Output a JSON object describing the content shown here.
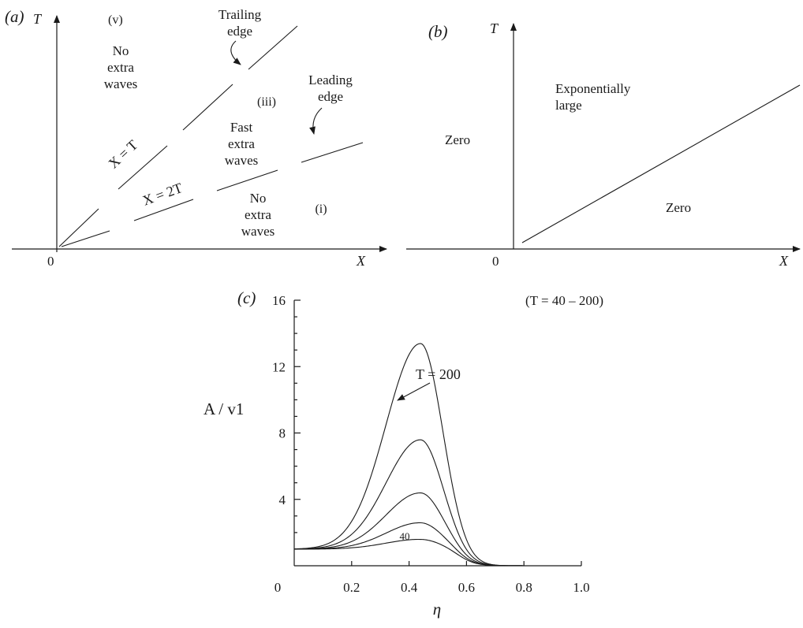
{
  "panel_a": {
    "panel_label": "(a)",
    "t_axis": "T",
    "x_axis": "X",
    "origin": "0",
    "region_v": "(v)",
    "region_v_text": [
      "No",
      "extra",
      "waves"
    ],
    "trailing_edge": [
      "Trailing",
      "edge"
    ],
    "region_iii": "(iii)",
    "region_iii_text": [
      "Fast",
      "extra",
      "waves"
    ],
    "leading_edge": [
      "Leading",
      "edge"
    ],
    "region_i": "(i)",
    "region_i_text": [
      "No",
      "extra",
      "waves"
    ],
    "line_x_eq_t": "X = T",
    "line_x_eq_2t": "X = 2T"
  },
  "panel_b": {
    "panel_label": "(b)",
    "t_axis": "T",
    "x_axis": "X",
    "origin": "0",
    "left_region": "Zero",
    "upper_region": [
      "Exponentially",
      "large"
    ],
    "lower_region": "Zero"
  },
  "chart_data": {
    "type": "line",
    "panel_label": "(c)",
    "annotation": "(T = 40 – 200)",
    "curve_top_label": "T = 200",
    "curve_bottom_label": "40",
    "xlabel": "η",
    "ylabel": "A / v1",
    "xlim": [
      0,
      1.0
    ],
    "ylim": [
      0,
      16
    ],
    "xticks": [
      "0",
      "0.2",
      "0.4",
      "0.6",
      "0.8",
      "1.0"
    ],
    "yticks": [
      "4",
      "8",
      "12",
      "16"
    ],
    "grid": false,
    "peak_eta": 0.44,
    "series": [
      {
        "peak": 1.6
      },
      {
        "peak": 2.6
      },
      {
        "peak": 4.4
      },
      {
        "peak": 7.6
      },
      {
        "peak": 13.4
      }
    ]
  }
}
